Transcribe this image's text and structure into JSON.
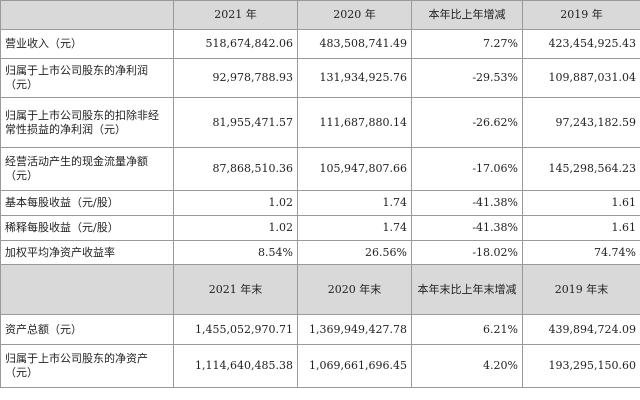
{
  "header1": {
    "blank": "",
    "c1": "2021 年",
    "c2": "2020 年",
    "c3": "本年比上年增减",
    "c4": "2019 年"
  },
  "rows1": [
    {
      "label": "营业收入（元）",
      "v1": "518,674,842.06",
      "v2": "483,508,741.49",
      "v3": "7.27%",
      "v4": "423,454,925.43"
    },
    {
      "label": "归属于上市公司股东的净利润（元）",
      "v1": "92,978,788.93",
      "v2": "131,934,925.76",
      "v3": "-29.53%",
      "v4": "109,887,031.04"
    },
    {
      "label": "归属于上市公司股东的扣除非经常性损益的净利润（元）",
      "v1": "81,955,471.57",
      "v2": "111,687,880.14",
      "v3": "-26.62%",
      "v4": "97,243,182.59"
    },
    {
      "label": "经营活动产生的现金流量净额（元）",
      "v1": "87,868,510.36",
      "v2": "105,947,807.66",
      "v3": "-17.06%",
      "v4": "145,298,564.23"
    },
    {
      "label": "基本每股收益（元/股）",
      "v1": "1.02",
      "v2": "1.74",
      "v3": "-41.38%",
      "v4": "1.61"
    },
    {
      "label": "稀释每股收益（元/股）",
      "v1": "1.02",
      "v2": "1.74",
      "v3": "-41.38%",
      "v4": "1.61"
    },
    {
      "label": "加权平均净资产收益率",
      "v1": "8.54%",
      "v2": "26.56%",
      "v3": "-18.02%",
      "v4": "74.74%"
    }
  ],
  "header2": {
    "blank": "",
    "c1": "2021 年末",
    "c2": "2020 年末",
    "c3": "本年末比上年末增减",
    "c4": "2019 年末"
  },
  "rows2": [
    {
      "label": "资产总额（元）",
      "v1": "1,455,052,970.71",
      "v2": "1,369,949,427.78",
      "v3": "6.21%",
      "v4": "439,894,724.09"
    },
    {
      "label": "归属于上市公司股东的净资产（元）",
      "v1": "1,114,640,485.38",
      "v2": "1,069,661,696.45",
      "v3": "4.20%",
      "v4": "193,295,150.60"
    }
  ]
}
